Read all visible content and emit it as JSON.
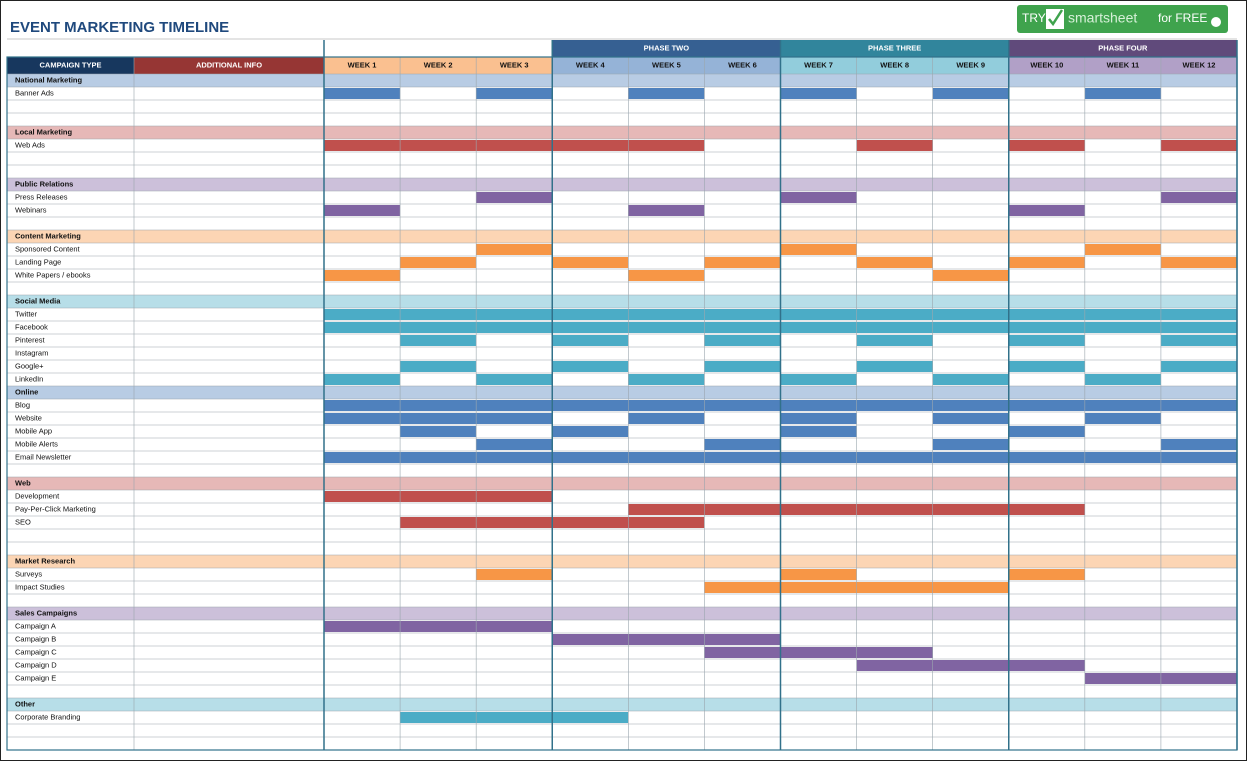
{
  "header": {
    "title": "EVENT MARKETING TIMELINE",
    "button": {
      "try": "TRY",
      "brand": "smartsheet",
      "cta": "for FREE"
    }
  },
  "table": {
    "columns": [
      "CAMPAIGN TYPE",
      "ADDITIONAL INFO"
    ],
    "column_colors": [
      "#17375e",
      "#963634"
    ],
    "phases": [
      {
        "name": null,
        "color": null,
        "tint": "#fac090",
        "weeks": [
          "WEEK 1",
          "WEEK 2",
          "WEEK 3"
        ]
      },
      {
        "name": "PHASE TWO",
        "color": "#366092",
        "tint": "#95b3d7",
        "weeks": [
          "WEEK 4",
          "WEEK 5",
          "WEEK 6"
        ]
      },
      {
        "name": "PHASE THREE",
        "color": "#31859c",
        "tint": "#92cddc",
        "weeks": [
          "WEEK 7",
          "WEEK 8",
          "WEEK 9"
        ]
      },
      {
        "name": "PHASE FOUR",
        "color": "#604a7b",
        "tint": "#b1a0c7",
        "weeks": [
          "WEEK 10",
          "WEEK 11",
          "WEEK 12"
        ]
      }
    ],
    "groups": [
      {
        "name": "National Marketing",
        "tint": "#b8cce4",
        "color": "#4f81bd",
        "rows": [
          {
            "label": "Banner Ads",
            "filled": [
              1,
              0,
              1,
              0,
              1,
              0,
              1,
              0,
              1,
              0,
              1,
              0
            ]
          },
          null,
          null
        ]
      },
      {
        "name": "Local Marketing",
        "tint": "#e6b8b7",
        "color": "#c0504d",
        "rows": [
          {
            "label": "Web Ads",
            "filled": [
              1,
              1,
              1,
              1,
              1,
              0,
              0,
              1,
              0,
              1,
              0,
              1
            ]
          },
          null,
          null
        ]
      },
      {
        "name": "Public Relations",
        "tint": "#ccc0da",
        "color": "#8064a2",
        "rows": [
          {
            "label": "Press Releases",
            "filled": [
              0,
              0,
              1,
              0,
              0,
              0,
              1,
              0,
              0,
              0,
              0,
              1
            ]
          },
          {
            "label": "Webinars",
            "filled": [
              1,
              0,
              0,
              0,
              1,
              0,
              0,
              0,
              0,
              1,
              0,
              0
            ]
          },
          null
        ]
      },
      {
        "name": "Content Marketing",
        "tint": "#fcd5b4",
        "color": "#f79646",
        "rows": [
          {
            "label": "Sponsored Content",
            "filled": [
              0,
              0,
              1,
              0,
              0,
              0,
              1,
              0,
              0,
              0,
              1,
              0
            ]
          },
          {
            "label": "Landing Page",
            "filled": [
              0,
              1,
              0,
              1,
              0,
              1,
              0,
              1,
              0,
              1,
              0,
              1
            ]
          },
          {
            "label": "White Papers / ebooks",
            "filled": [
              1,
              0,
              0,
              0,
              1,
              0,
              0,
              0,
              1,
              0,
              0,
              0
            ]
          },
          null
        ]
      },
      {
        "name": "Social Media",
        "tint": "#b7dee8",
        "color": "#4bacc6",
        "rows": [
          {
            "label": "Twitter",
            "filled": [
              1,
              1,
              1,
              1,
              1,
              1,
              1,
              1,
              1,
              1,
              1,
              1
            ]
          },
          {
            "label": "Facebook",
            "filled": [
              1,
              1,
              1,
              1,
              1,
              1,
              1,
              1,
              1,
              1,
              1,
              1
            ]
          },
          {
            "label": "Pinterest",
            "filled": [
              0,
              1,
              0,
              1,
              0,
              1,
              0,
              1,
              0,
              1,
              0,
              1
            ]
          },
          {
            "label": "Instagram",
            "filled": [
              0,
              0,
              0,
              0,
              0,
              0,
              0,
              0,
              0,
              0,
              0,
              0
            ]
          },
          {
            "label": "Google+",
            "filled": [
              0,
              1,
              0,
              1,
              0,
              1,
              0,
              1,
              0,
              1,
              0,
              1
            ]
          },
          {
            "label": "LinkedIn",
            "filled": [
              1,
              0,
              1,
              0,
              1,
              0,
              1,
              0,
              1,
              0,
              1,
              0
            ]
          }
        ]
      },
      {
        "name": "Online",
        "tint": "#b8cce4",
        "color": "#4f81bd",
        "rows": [
          {
            "label": "Blog",
            "filled": [
              1,
              1,
              1,
              1,
              1,
              1,
              1,
              1,
              1,
              1,
              1,
              1
            ]
          },
          {
            "label": "Website",
            "filled": [
              1,
              1,
              1,
              0,
              1,
              0,
              1,
              0,
              1,
              0,
              1,
              0
            ]
          },
          {
            "label": "Mobile App",
            "filled": [
              0,
              1,
              0,
              1,
              0,
              0,
              1,
              0,
              0,
              1,
              0,
              0
            ]
          },
          {
            "label": "Mobile Alerts",
            "filled": [
              0,
              0,
              1,
              0,
              0,
              1,
              0,
              0,
              1,
              0,
              0,
              1
            ]
          },
          {
            "label": "Email Newsletter",
            "filled": [
              1,
              1,
              1,
              1,
              1,
              1,
              1,
              1,
              1,
              1,
              1,
              1
            ]
          },
          null
        ]
      },
      {
        "name": "Web",
        "tint": "#e6b8b7",
        "color": "#c0504d",
        "rows": [
          {
            "label": "Development",
            "filled": [
              1,
              1,
              1,
              0,
              0,
              0,
              0,
              0,
              0,
              0,
              0,
              0
            ]
          },
          {
            "label": "Pay-Per-Click Marketing",
            "filled": [
              0,
              0,
              0,
              0,
              1,
              1,
              1,
              1,
              1,
              1,
              0,
              0
            ]
          },
          {
            "label": "SEO",
            "filled": [
              0,
              1,
              1,
              1,
              1,
              0,
              0,
              0,
              0,
              0,
              0,
              0
            ]
          },
          null,
          null
        ]
      },
      {
        "name": "Market Research",
        "tint": "#fcd5b4",
        "color": "#f79646",
        "rows": [
          {
            "label": "Surveys",
            "filled": [
              0,
              0,
              1,
              0,
              0,
              0,
              1,
              0,
              0,
              1,
              0,
              0
            ]
          },
          {
            "label": "Impact Studies",
            "filled": [
              0,
              0,
              0,
              0,
              0,
              1,
              1,
              1,
              1,
              0,
              0,
              0
            ]
          },
          null
        ]
      },
      {
        "name": "Sales Campaigns",
        "tint": "#ccc0da",
        "color": "#8064a2",
        "rows": [
          {
            "label": "Campaign A",
            "filled": [
              1,
              1,
              1,
              0,
              0,
              0,
              0,
              0,
              0,
              0,
              0,
              0
            ]
          },
          {
            "label": "Campaign B",
            "filled": [
              0,
              0,
              0,
              1,
              1,
              1,
              0,
              0,
              0,
              0,
              0,
              0
            ]
          },
          {
            "label": "Campaign C",
            "filled": [
              0,
              0,
              0,
              0,
              0,
              1,
              1,
              1,
              0,
              0,
              0,
              0
            ]
          },
          {
            "label": "Campaign D",
            "filled": [
              0,
              0,
              0,
              0,
              0,
              0,
              0,
              1,
              1,
              1,
              0,
              0
            ]
          },
          {
            "label": "Campaign E",
            "filled": [
              0,
              0,
              0,
              0,
              0,
              0,
              0,
              0,
              0,
              0,
              1,
              1
            ]
          },
          null
        ]
      },
      {
        "name": "Other",
        "tint": "#b7dee8",
        "color": "#4bacc6",
        "rows": [
          {
            "label": "Corporate Branding",
            "filled": [
              0,
              1,
              1,
              1,
              0,
              0,
              0,
              0,
              0,
              0,
              0,
              0
            ]
          },
          null,
          null
        ]
      }
    ]
  }
}
